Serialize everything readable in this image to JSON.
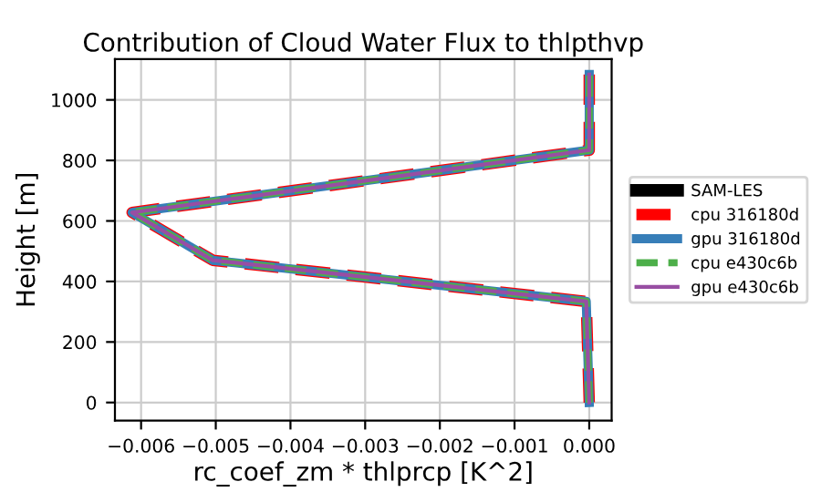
{
  "chart_data": {
    "type": "line",
    "title": "Contribution of Cloud Water Flux to thlpthvp",
    "xlabel": "rc_coef_zm * thlprcp [K^2]",
    "ylabel": "Height [m]",
    "x": [
      0,
      -4e-05,
      -0.00504,
      -0.00612,
      0,
      0
    ],
    "series": [
      {
        "name": "SAM-LES",
        "color": "#000000",
        "values": [
          null,
          null,
          null,
          null,
          null,
          null
        ]
      },
      {
        "name": "cpu 316180d",
        "color": "#ff0000",
        "line_style": "dashed",
        "values": [
          0,
          334,
          470,
          628,
          834,
          1084
        ]
      },
      {
        "name": "gpu 316180d",
        "color": "#377eb8",
        "line_style": "solid",
        "values": [
          0,
          334,
          470,
          628,
          834,
          1084
        ]
      },
      {
        "name": "cpu e430c6b",
        "color": "#4daf4a",
        "line_style": "dashed",
        "values": [
          0,
          334,
          470,
          628,
          834,
          1084
        ]
      },
      {
        "name": "gpu e430c6b",
        "color": "#984ea3",
        "line_style": "solid",
        "values": [
          0,
          334,
          470,
          628,
          834,
          1084
        ]
      }
    ],
    "xlim": [
      -0.00635,
      0.0003
    ],
    "ylim": [
      -60,
      1135
    ],
    "xticks": [
      {
        "value": -0.006,
        "label": "−0.006"
      },
      {
        "value": -0.005,
        "label": "−0.005"
      },
      {
        "value": -0.004,
        "label": "−0.004"
      },
      {
        "value": -0.003,
        "label": "−0.003"
      },
      {
        "value": -0.002,
        "label": "−0.002"
      },
      {
        "value": -0.001,
        "label": "−0.001"
      },
      {
        "value": 0,
        "label": "0.000"
      }
    ],
    "yticks": [
      0,
      200,
      400,
      600,
      800,
      1000
    ],
    "grid": true,
    "legend": "right"
  }
}
